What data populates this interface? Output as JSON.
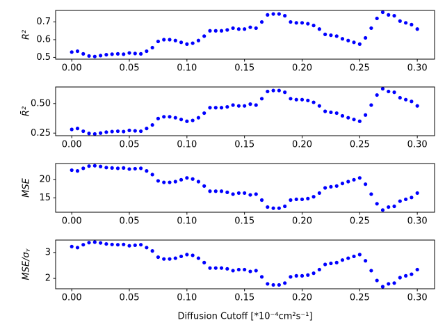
{
  "chart_data": [
    {
      "type": "scatter",
      "ylabel": "R²",
      "x": [
        0,
        0.005,
        0.01,
        0.015,
        0.02,
        0.025,
        0.03,
        0.035,
        0.04,
        0.045,
        0.05,
        0.055,
        0.06,
        0.065,
        0.07,
        0.075,
        0.08,
        0.085,
        0.09,
        0.095,
        0.1,
        0.105,
        0.11,
        0.115,
        0.12,
        0.125,
        0.13,
        0.135,
        0.14,
        0.145,
        0.15,
        0.155,
        0.16,
        0.165,
        0.17,
        0.175,
        0.18,
        0.185,
        0.19,
        0.195,
        0.2,
        0.205,
        0.21,
        0.215,
        0.22,
        0.225,
        0.23,
        0.235,
        0.24,
        0.245,
        0.25,
        0.255,
        0.26,
        0.265,
        0.27,
        0.275,
        0.28,
        0.285,
        0.29,
        0.295,
        0.3
      ],
      "values": [
        0.53,
        0.535,
        0.52,
        0.508,
        0.505,
        0.51,
        0.515,
        0.518,
        0.52,
        0.518,
        0.525,
        0.522,
        0.52,
        0.535,
        0.555,
        0.59,
        0.6,
        0.6,
        0.595,
        0.585,
        0.575,
        0.58,
        0.595,
        0.62,
        0.65,
        0.65,
        0.65,
        0.655,
        0.665,
        0.66,
        0.66,
        0.67,
        0.665,
        0.7,
        0.74,
        0.745,
        0.745,
        0.735,
        0.7,
        0.695,
        0.695,
        0.69,
        0.68,
        0.66,
        0.63,
        0.625,
        0.62,
        0.605,
        0.595,
        0.585,
        0.575,
        0.61,
        0.665,
        0.72,
        0.755,
        0.74,
        0.735,
        0.705,
        0.695,
        0.685,
        0.66
      ],
      "color": "#0000ff",
      "xlim": [
        -0.014,
        0.315
      ],
      "ylim": [
        0.49,
        0.765
      ],
      "xticks": [
        {
          "value": 0,
          "label": "0.00"
        },
        {
          "value": 0.05,
          "label": "0.05"
        },
        {
          "value": 0.1,
          "label": "0.10"
        },
        {
          "value": 0.15,
          "label": "0.15"
        },
        {
          "value": 0.2,
          "label": "0.20"
        },
        {
          "value": 0.25,
          "label": "0.25"
        },
        {
          "value": 0.3,
          "label": "0.30"
        }
      ],
      "yticks": [
        0.5,
        0.6,
        0.7
      ]
    },
    {
      "type": "scatter",
      "ylabel": "R̄²",
      "x": [
        0,
        0.005,
        0.01,
        0.015,
        0.02,
        0.025,
        0.03,
        0.035,
        0.04,
        0.045,
        0.05,
        0.055,
        0.06,
        0.065,
        0.07,
        0.075,
        0.08,
        0.085,
        0.09,
        0.095,
        0.1,
        0.105,
        0.11,
        0.115,
        0.12,
        0.125,
        0.13,
        0.135,
        0.14,
        0.145,
        0.15,
        0.155,
        0.16,
        0.165,
        0.17,
        0.175,
        0.18,
        0.185,
        0.19,
        0.195,
        0.2,
        0.205,
        0.21,
        0.215,
        0.22,
        0.225,
        0.23,
        0.235,
        0.24,
        0.245,
        0.25,
        0.255,
        0.26,
        0.265,
        0.27,
        0.275,
        0.28,
        0.285,
        0.29,
        0.295,
        0.3
      ],
      "values": [
        0.281,
        0.289,
        0.266,
        0.247,
        0.243,
        0.25,
        0.258,
        0.263,
        0.266,
        0.263,
        0.273,
        0.269,
        0.266,
        0.289,
        0.319,
        0.373,
        0.388,
        0.388,
        0.38,
        0.365,
        0.35,
        0.357,
        0.38,
        0.419,
        0.465,
        0.465,
        0.465,
        0.472,
        0.487,
        0.48,
        0.48,
        0.495,
        0.487,
        0.541,
        0.602,
        0.61,
        0.61,
        0.595,
        0.541,
        0.533,
        0.533,
        0.526,
        0.51,
        0.48,
        0.434,
        0.426,
        0.419,
        0.396,
        0.38,
        0.365,
        0.35,
        0.403,
        0.487,
        0.572,
        0.625,
        0.602,
        0.595,
        0.549,
        0.533,
        0.518,
        0.48
      ],
      "color": "#0000ff",
      "xlim": [
        -0.014,
        0.315
      ],
      "ylim": [
        0.228,
        0.64
      ],
      "xticks": [
        {
          "value": 0,
          "label": "0.00"
        },
        {
          "value": 0.05,
          "label": "0.05"
        },
        {
          "value": 0.1,
          "label": "0.10"
        },
        {
          "value": 0.15,
          "label": "0.15"
        },
        {
          "value": 0.2,
          "label": "0.20"
        },
        {
          "value": 0.25,
          "label": "0.25"
        },
        {
          "value": 0.3,
          "label": "0.30"
        }
      ],
      "yticks": [
        0.25,
        {
          "value": 0.5,
          "label": "0.50"
        }
      ]
    },
    {
      "type": "scatter",
      "ylabel": "MSE",
      "x": [
        0,
        0.005,
        0.01,
        0.015,
        0.02,
        0.025,
        0.03,
        0.035,
        0.04,
        0.045,
        0.05,
        0.055,
        0.06,
        0.065,
        0.07,
        0.075,
        0.08,
        0.085,
        0.09,
        0.095,
        0.1,
        0.105,
        0.11,
        0.115,
        0.12,
        0.125,
        0.13,
        0.135,
        0.14,
        0.145,
        0.15,
        0.155,
        0.16,
        0.165,
        0.17,
        0.175,
        0.18,
        0.185,
        0.19,
        0.195,
        0.2,
        0.205,
        0.21,
        0.215,
        0.22,
        0.225,
        0.23,
        0.235,
        0.24,
        0.245,
        0.25,
        0.255,
        0.26,
        0.265,
        0.27,
        0.275,
        0.28,
        0.285,
        0.29,
        0.295,
        0.3
      ],
      "values": [
        22.5,
        22.3,
        23.0,
        23.6,
        23.7,
        23.5,
        23.2,
        23.1,
        23.0,
        23.1,
        22.8,
        22.9,
        23.0,
        22.3,
        21.3,
        19.6,
        19.2,
        19.2,
        19.4,
        19.9,
        20.4,
        20.1,
        19.4,
        18.2,
        16.8,
        16.8,
        16.8,
        16.5,
        16.0,
        16.3,
        16.3,
        15.8,
        16.0,
        14.4,
        12.5,
        12.2,
        12.2,
        12.7,
        14.4,
        14.6,
        14.6,
        14.8,
        15.3,
        16.3,
        17.7,
        18.0,
        18.2,
        18.9,
        19.4,
        19.9,
        20.4,
        18.7,
        16.0,
        13.4,
        11.7,
        12.5,
        12.7,
        14.1,
        14.6,
        15.1,
        16.3
      ],
      "color": "#0000ff",
      "xlim": [
        -0.014,
        0.315
      ],
      "ylim": [
        11.1,
        24.3
      ],
      "xticks": [
        {
          "value": 0,
          "label": "0.00"
        },
        {
          "value": 0.05,
          "label": "0.05"
        },
        {
          "value": 0.1,
          "label": "0.10"
        },
        {
          "value": 0.15,
          "label": "0.15"
        },
        {
          "value": 0.2,
          "label": "0.20"
        },
        {
          "value": 0.25,
          "label": "0.25"
        },
        {
          "value": 0.3,
          "label": "0.30"
        }
      ],
      "yticks": [
        15,
        20
      ]
    },
    {
      "type": "scatter",
      "ylabel": "MSE/σᵧ",
      "xlabel": "Diffusion Cutoff [*10⁻⁴cm²s⁻¹]",
      "x": [
        0,
        0.005,
        0.01,
        0.015,
        0.02,
        0.025,
        0.03,
        0.035,
        0.04,
        0.045,
        0.05,
        0.055,
        0.06,
        0.065,
        0.07,
        0.075,
        0.08,
        0.085,
        0.09,
        0.095,
        0.1,
        0.105,
        0.11,
        0.115,
        0.12,
        0.125,
        0.13,
        0.135,
        0.14,
        0.145,
        0.15,
        0.155,
        0.16,
        0.165,
        0.17,
        0.175,
        0.18,
        0.185,
        0.19,
        0.195,
        0.2,
        0.205,
        0.21,
        0.215,
        0.22,
        0.225,
        0.23,
        0.235,
        0.24,
        0.245,
        0.25,
        0.255,
        0.26,
        0.265,
        0.27,
        0.275,
        0.28,
        0.285,
        0.29,
        0.295,
        0.3
      ],
      "values": [
        3.23,
        3.19,
        3.3,
        3.38,
        3.4,
        3.37,
        3.33,
        3.31,
        3.3,
        3.31,
        3.26,
        3.28,
        3.3,
        3.19,
        3.06,
        2.82,
        2.75,
        2.75,
        2.78,
        2.85,
        2.92,
        2.89,
        2.78,
        2.61,
        2.4,
        2.4,
        2.4,
        2.37,
        2.3,
        2.34,
        2.34,
        2.27,
        2.3,
        2.06,
        1.79,
        1.75,
        1.75,
        1.82,
        2.06,
        2.1,
        2.1,
        2.13,
        2.2,
        2.34,
        2.54,
        2.58,
        2.61,
        2.71,
        2.78,
        2.85,
        2.92,
        2.68,
        2.3,
        1.92,
        1.68,
        1.79,
        1.82,
        2.03,
        2.1,
        2.16,
        2.34
      ],
      "color": "#0000ff",
      "xlim": [
        -0.014,
        0.315
      ],
      "ylim": [
        1.6,
        3.48
      ],
      "xticks": [
        {
          "value": 0,
          "label": "0.00"
        },
        {
          "value": 0.05,
          "label": "0.05"
        },
        {
          "value": 0.1,
          "label": "0.10"
        },
        {
          "value": 0.15,
          "label": "0.15"
        },
        {
          "value": 0.2,
          "label": "0.20"
        },
        {
          "value": 0.25,
          "label": "0.25"
        },
        {
          "value": 0.3,
          "label": "0.30"
        }
      ],
      "yticks": [
        2,
        3
      ]
    }
  ]
}
